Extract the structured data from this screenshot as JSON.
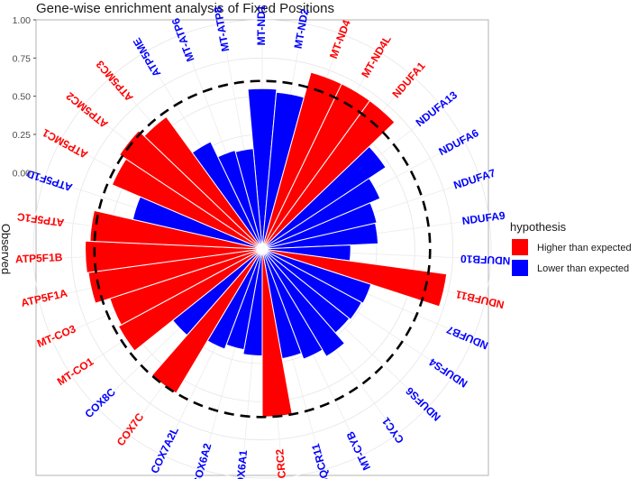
{
  "chart_data": {
    "type": "bar",
    "title": "Gene-wise enrichment analysis of Fixed Positions",
    "ylabel": "Observed",
    "ylim": [
      -0.5,
      1.0
    ],
    "yticks": [
      "0.00",
      "0.25",
      "0.50",
      "0.75",
      "1.00"
    ],
    "reference_circle": 0.6,
    "grid": true,
    "legend_position": "right",
    "legend": {
      "title": "hypothesis",
      "items": [
        {
          "label": "Higher than expected",
          "color": "#ff0000"
        },
        {
          "label": "Lower than expected",
          "color": "#0000ff"
        }
      ]
    },
    "categories": [
      "MT-ND1",
      "MT-ND2",
      "MT-ND4",
      "MT-ND4L",
      "NDUFA1",
      "NDUFA13",
      "NDUFA6",
      "NDUFA7",
      "NDUFA9",
      "NDUFB10",
      "NDUFB11",
      "NDUFB7",
      "NDUFS4",
      "NDUFS6",
      "CYC1",
      "MT-CYB",
      "UQCR11",
      "UQCRC2",
      "COX6A1",
      "COX6A2",
      "COX7A2L",
      "COX7C",
      "COX8C",
      "MT-CO1",
      "MT-CO3",
      "ATP5F1A",
      "ATP5F1B",
      "ATP5F1C",
      "ATP5F1D",
      "ATP5MC1",
      "ATP5MC2",
      "ATP5MC3",
      "ATP5ME",
      "MT-ATP6",
      "MT-ATP8"
    ],
    "values": [
      0.55,
      0.53,
      0.7,
      0.7,
      0.7,
      0.47,
      0.34,
      0.27,
      0.26,
      0.08,
      0.72,
      0.25,
      0.24,
      0.23,
      0.32,
      0.27,
      0.23,
      0.6,
      0.2,
      0.17,
      0.2,
      0.6,
      0.25,
      0.57,
      0.55,
      0.65,
      0.66,
      0.63,
      0.37,
      0.57,
      0.62,
      0.57,
      0.28,
      0.17,
      0.16
    ],
    "hypothesis": [
      "Lower than expected",
      "Lower than expected",
      "Higher than expected",
      "Higher than expected",
      "Higher than expected",
      "Lower than expected",
      "Lower than expected",
      "Lower than expected",
      "Lower than expected",
      "Lower than expected",
      "Higher than expected",
      "Lower than expected",
      "Lower than expected",
      "Lower than expected",
      "Lower than expected",
      "Lower than expected",
      "Lower than expected",
      "Higher than expected",
      "Lower than expected",
      "Lower than expected",
      "Lower than expected",
      "Higher than expected",
      "Lower than expected",
      "Higher than expected",
      "Higher than expected",
      "Higher than expected",
      "Higher than expected",
      "Higher than expected",
      "Lower than expected",
      "Higher than expected",
      "Higher than expected",
      "Higher than expected",
      "Lower than expected",
      "Lower than expected",
      "Lower than expected"
    ]
  }
}
